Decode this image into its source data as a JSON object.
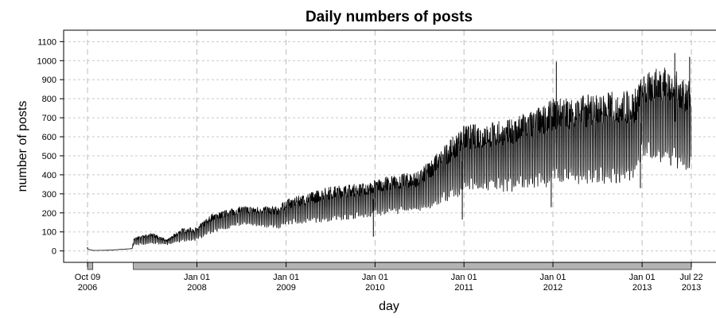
{
  "chart_data": {
    "type": "line",
    "title": "Daily numbers of posts",
    "xlabel": "day",
    "ylabel": "number of posts",
    "xlim": [
      "2006-10-09",
      "2013-07-22"
    ],
    "ylim": [
      -60,
      1160
    ],
    "grid": true,
    "y_ticks": [
      0,
      100,
      200,
      300,
      400,
      500,
      600,
      700,
      800,
      900,
      1000,
      1100
    ],
    "x_ticks": [
      {
        "date": "2006-10-09",
        "line1": "Oct 09",
        "line2": "2006"
      },
      {
        "date": "2008-01-01",
        "line1": "Jan 01",
        "line2": "2008"
      },
      {
        "date": "2009-01-01",
        "line1": "Jan 01",
        "line2": "2009"
      },
      {
        "date": "2010-01-01",
        "line1": "Jan 01",
        "line2": "2010"
      },
      {
        "date": "2011-01-01",
        "line1": "Jan 01",
        "line2": "2011"
      },
      {
        "date": "2012-01-01",
        "line1": "Jan 01",
        "line2": "2012"
      },
      {
        "date": "2013-01-01",
        "line1": "Jan 01",
        "line2": "2013"
      },
      {
        "date": "2013-07-22",
        "line1": "Jul 22",
        "line2": "2013"
      }
    ],
    "coverage_bars": [
      {
        "start": "2006-10-09",
        "end": "2006-10-31"
      },
      {
        "start": "2007-04-15",
        "end": "2013-07-22"
      }
    ],
    "series": [
      {
        "envelope": [
          {
            "date": "2006-10-09",
            "low": 0,
            "high": 20
          },
          {
            "date": "2006-11-01",
            "low": 0,
            "high": 5
          },
          {
            "date": "2007-01-01",
            "low": 2,
            "high": 5
          },
          {
            "date": "2007-04-10",
            "low": 10,
            "high": 14
          },
          {
            "date": "2007-04-15",
            "low": 25,
            "high": 70
          },
          {
            "date": "2007-07-01",
            "low": 35,
            "high": 95
          },
          {
            "date": "2007-09-01",
            "low": 30,
            "high": 60
          },
          {
            "date": "2007-11-01",
            "low": 45,
            "high": 120
          },
          {
            "date": "2008-01-01",
            "low": 50,
            "high": 125
          },
          {
            "date": "2008-03-01",
            "low": 90,
            "high": 195
          },
          {
            "date": "2008-07-01",
            "low": 130,
            "high": 235
          },
          {
            "date": "2008-12-01",
            "low": 110,
            "high": 235
          },
          {
            "date": "2009-01-01",
            "low": 130,
            "high": 270
          },
          {
            "date": "2009-07-01",
            "low": 145,
            "high": 340
          },
          {
            "date": "2009-12-15",
            "low": 170,
            "high": 360
          },
          {
            "date": "2010-01-01",
            "low": 175,
            "high": 380
          },
          {
            "date": "2010-07-01",
            "low": 190,
            "high": 420
          },
          {
            "date": "2010-12-01",
            "low": 260,
            "high": 620
          },
          {
            "date": "2011-01-01",
            "low": 300,
            "high": 660
          },
          {
            "date": "2011-07-01",
            "low": 290,
            "high": 690
          },
          {
            "date": "2011-12-01",
            "low": 310,
            "high": 770
          },
          {
            "date": "2012-01-01",
            "low": 330,
            "high": 800
          },
          {
            "date": "2012-07-01",
            "low": 320,
            "high": 830
          },
          {
            "date": "2012-12-01",
            "low": 340,
            "high": 850
          },
          {
            "date": "2013-01-01",
            "low": 470,
            "high": 920
          },
          {
            "date": "2013-04-01",
            "low": 430,
            "high": 980
          },
          {
            "date": "2013-07-22",
            "low": 380,
            "high": 900
          }
        ],
        "spikes": [
          {
            "date": "2006-10-09",
            "value": 20
          },
          {
            "date": "2009-12-25",
            "value": 75
          },
          {
            "date": "2010-12-25",
            "value": 165
          },
          {
            "date": "2011-12-25",
            "value": 230
          },
          {
            "date": "2012-01-15",
            "value": 995
          },
          {
            "date": "2012-12-25",
            "value": 330
          },
          {
            "date": "2013-05-15",
            "value": 1040
          },
          {
            "date": "2013-07-15",
            "value": 1020
          }
        ]
      }
    ]
  }
}
